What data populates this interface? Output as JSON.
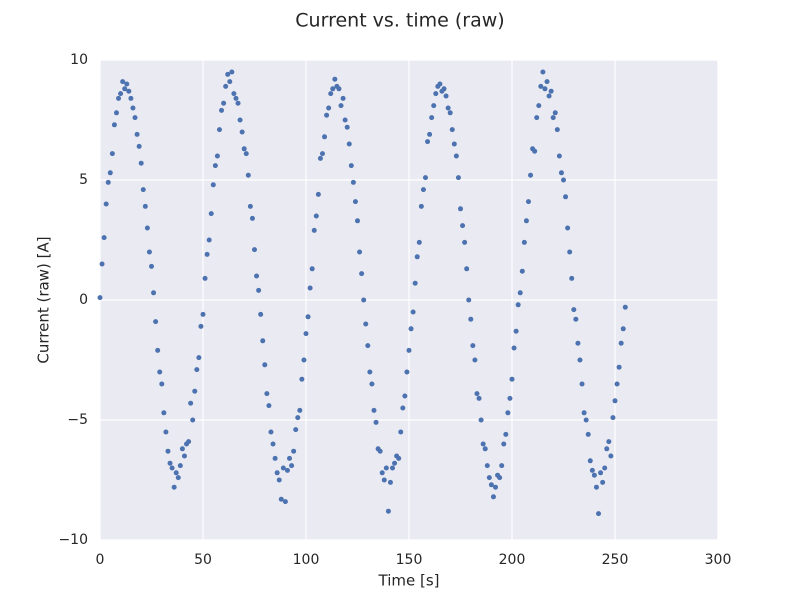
{
  "chart_data": {
    "type": "scatter",
    "title": "Current vs. time (raw)",
    "xlabel": "Time [s]",
    "ylabel": "Current (raw) [A]",
    "xlim": [
      0,
      300
    ],
    "ylim": [
      -10,
      10
    ],
    "xticks": [
      0,
      50,
      100,
      150,
      200,
      250,
      300
    ],
    "yticks": [
      {
        "value": -10,
        "label": "−10"
      },
      {
        "value": -5,
        "label": "−5"
      },
      0,
      5,
      10
    ],
    "grid": true,
    "background": "#eaeaf2",
    "series": [
      {
        "color": "#4c72b0",
        "x": [
          0,
          1,
          2,
          3,
          4,
          5,
          6,
          7,
          8,
          9,
          10,
          11,
          12,
          13,
          14,
          15,
          16,
          17,
          18,
          19,
          20,
          21,
          22,
          23,
          24,
          25,
          26,
          27,
          28,
          29,
          30,
          31,
          32,
          33,
          34,
          35,
          36,
          37,
          38,
          39,
          40,
          41,
          42,
          43,
          44,
          45,
          46,
          47,
          48,
          49,
          50,
          51,
          52,
          53,
          54,
          55,
          56,
          57,
          58,
          59,
          60,
          61,
          62,
          63,
          64,
          65,
          66,
          67,
          68,
          69,
          70,
          71,
          72,
          73,
          74,
          75,
          76,
          77,
          78,
          79,
          80,
          81,
          82,
          83,
          84,
          85,
          86,
          87,
          88,
          89,
          90,
          91,
          92,
          93,
          94,
          95,
          96,
          97,
          98,
          99,
          100,
          101,
          102,
          103,
          104,
          105,
          106,
          107,
          108,
          109,
          110,
          111,
          112,
          113,
          114,
          115,
          116,
          117,
          118,
          119,
          120,
          121,
          122,
          123,
          124,
          125,
          126,
          127,
          128,
          129,
          130,
          131,
          132,
          133,
          134,
          135,
          136,
          137,
          138,
          139,
          140,
          141,
          142,
          143,
          144,
          145,
          146,
          147,
          148,
          149,
          150,
          151,
          152,
          153,
          154,
          155,
          156,
          157,
          158,
          159,
          160,
          161,
          162,
          163,
          164,
          165,
          166,
          167,
          168,
          169,
          170,
          171,
          172,
          173,
          174,
          175,
          176,
          177,
          178,
          179,
          180,
          181,
          182,
          183,
          184,
          185,
          186,
          187,
          188,
          189,
          190,
          191,
          192,
          193,
          194,
          195,
          196,
          197,
          198,
          199,
          200,
          201,
          202,
          203,
          204,
          205,
          206,
          207,
          208,
          209,
          210,
          211,
          212,
          213,
          214,
          215,
          216,
          217,
          218,
          219,
          220,
          221,
          222,
          223,
          224,
          225,
          226,
          227,
          228,
          229,
          230,
          231,
          232,
          233,
          234,
          235,
          236,
          237,
          238,
          239,
          240,
          241,
          242,
          243,
          244,
          245,
          246,
          247,
          248,
          249,
          250,
          251,
          252,
          253,
          254,
          255
        ],
        "values": [
          0.1,
          1.5,
          2.6,
          4.0,
          4.9,
          5.3,
          6.1,
          7.3,
          7.8,
          8.4,
          8.6,
          9.1,
          8.8,
          9.0,
          8.7,
          8.4,
          8.0,
          7.6,
          6.9,
          6.4,
          5.7,
          4.6,
          3.9,
          3.0,
          2.0,
          1.4,
          0.3,
          -0.9,
          -2.1,
          -3.0,
          -3.5,
          -4.7,
          -5.5,
          -6.3,
          -6.8,
          -7.0,
          -7.8,
          -7.2,
          -7.4,
          -6.9,
          -6.2,
          -6.5,
          -6.0,
          -5.9,
          -4.3,
          -5.0,
          -3.8,
          -2.9,
          -2.4,
          -1.1,
          -0.6,
          0.9,
          1.9,
          2.5,
          3.6,
          4.8,
          5.6,
          6.0,
          7.1,
          7.9,
          8.2,
          8.9,
          9.4,
          9.1,
          9.5,
          8.6,
          8.4,
          8.2,
          7.5,
          7.0,
          6.3,
          6.1,
          5.2,
          3.9,
          3.4,
          2.1,
          1.0,
          0.4,
          -0.6,
          -1.7,
          -2.7,
          -3.9,
          -4.4,
          -5.5,
          -6.0,
          -6.6,
          -7.2,
          -7.5,
          -8.3,
          -7.0,
          -8.4,
          -7.1,
          -6.6,
          -6.9,
          -6.3,
          -5.4,
          -4.9,
          -4.6,
          -3.3,
          -2.5,
          -1.4,
          -0.7,
          0.5,
          1.3,
          2.9,
          3.5,
          4.4,
          5.9,
          6.1,
          6.8,
          7.7,
          8.0,
          8.6,
          8.8,
          9.2,
          8.9,
          8.8,
          8.1,
          8.4,
          7.5,
          7.2,
          6.5,
          5.6,
          4.9,
          4.1,
          3.3,
          2.0,
          1.1,
          0.0,
          -1.0,
          -1.9,
          -3.0,
          -3.5,
          -4.6,
          -5.1,
          -6.2,
          -6.3,
          -7.2,
          -7.5,
          -7.0,
          -8.8,
          -7.6,
          -7.0,
          -6.8,
          -6.5,
          -6.6,
          -5.5,
          -4.5,
          -4.0,
          -3.0,
          -2.1,
          -1.2,
          -0.5,
          0.7,
          1.8,
          2.4,
          3.9,
          4.6,
          5.1,
          6.6,
          6.9,
          7.6,
          8.1,
          8.6,
          8.9,
          9.0,
          8.7,
          8.8,
          8.5,
          8.0,
          7.8,
          7.1,
          6.5,
          6.0,
          5.1,
          3.8,
          3.1,
          2.4,
          1.3,
          0.0,
          -0.8,
          -1.9,
          -2.5,
          -3.9,
          -4.1,
          -5.0,
          -6.0,
          -6.2,
          -6.9,
          -7.4,
          -7.7,
          -8.2,
          -7.8,
          -7.3,
          -7.4,
          -6.9,
          -6.0,
          -5.6,
          -4.7,
          -4.1,
          -3.3,
          -2.0,
          -1.3,
          -0.2,
          0.3,
          1.2,
          2.4,
          3.3,
          4.1,
          5.2,
          6.3,
          6.2,
          7.6,
          8.1,
          8.9,
          9.5,
          8.8,
          9.1,
          8.5,
          8.7,
          7.6,
          7.8,
          7.1,
          6.0,
          5.3,
          5.0,
          4.3,
          3.0,
          2.0,
          0.9,
          -0.4,
          -0.8,
          -1.8,
          -2.5,
          -3.5,
          -4.7,
          -5.0,
          -5.6,
          -6.7,
          -7.1,
          -7.3,
          -7.8,
          -8.9,
          -7.2,
          -7.6,
          -7.0,
          -6.2,
          -5.9,
          -6.5,
          -4.9,
          -4.2,
          -3.5,
          -2.8,
          -1.8,
          -1.2,
          -0.3
        ]
      }
    ]
  }
}
